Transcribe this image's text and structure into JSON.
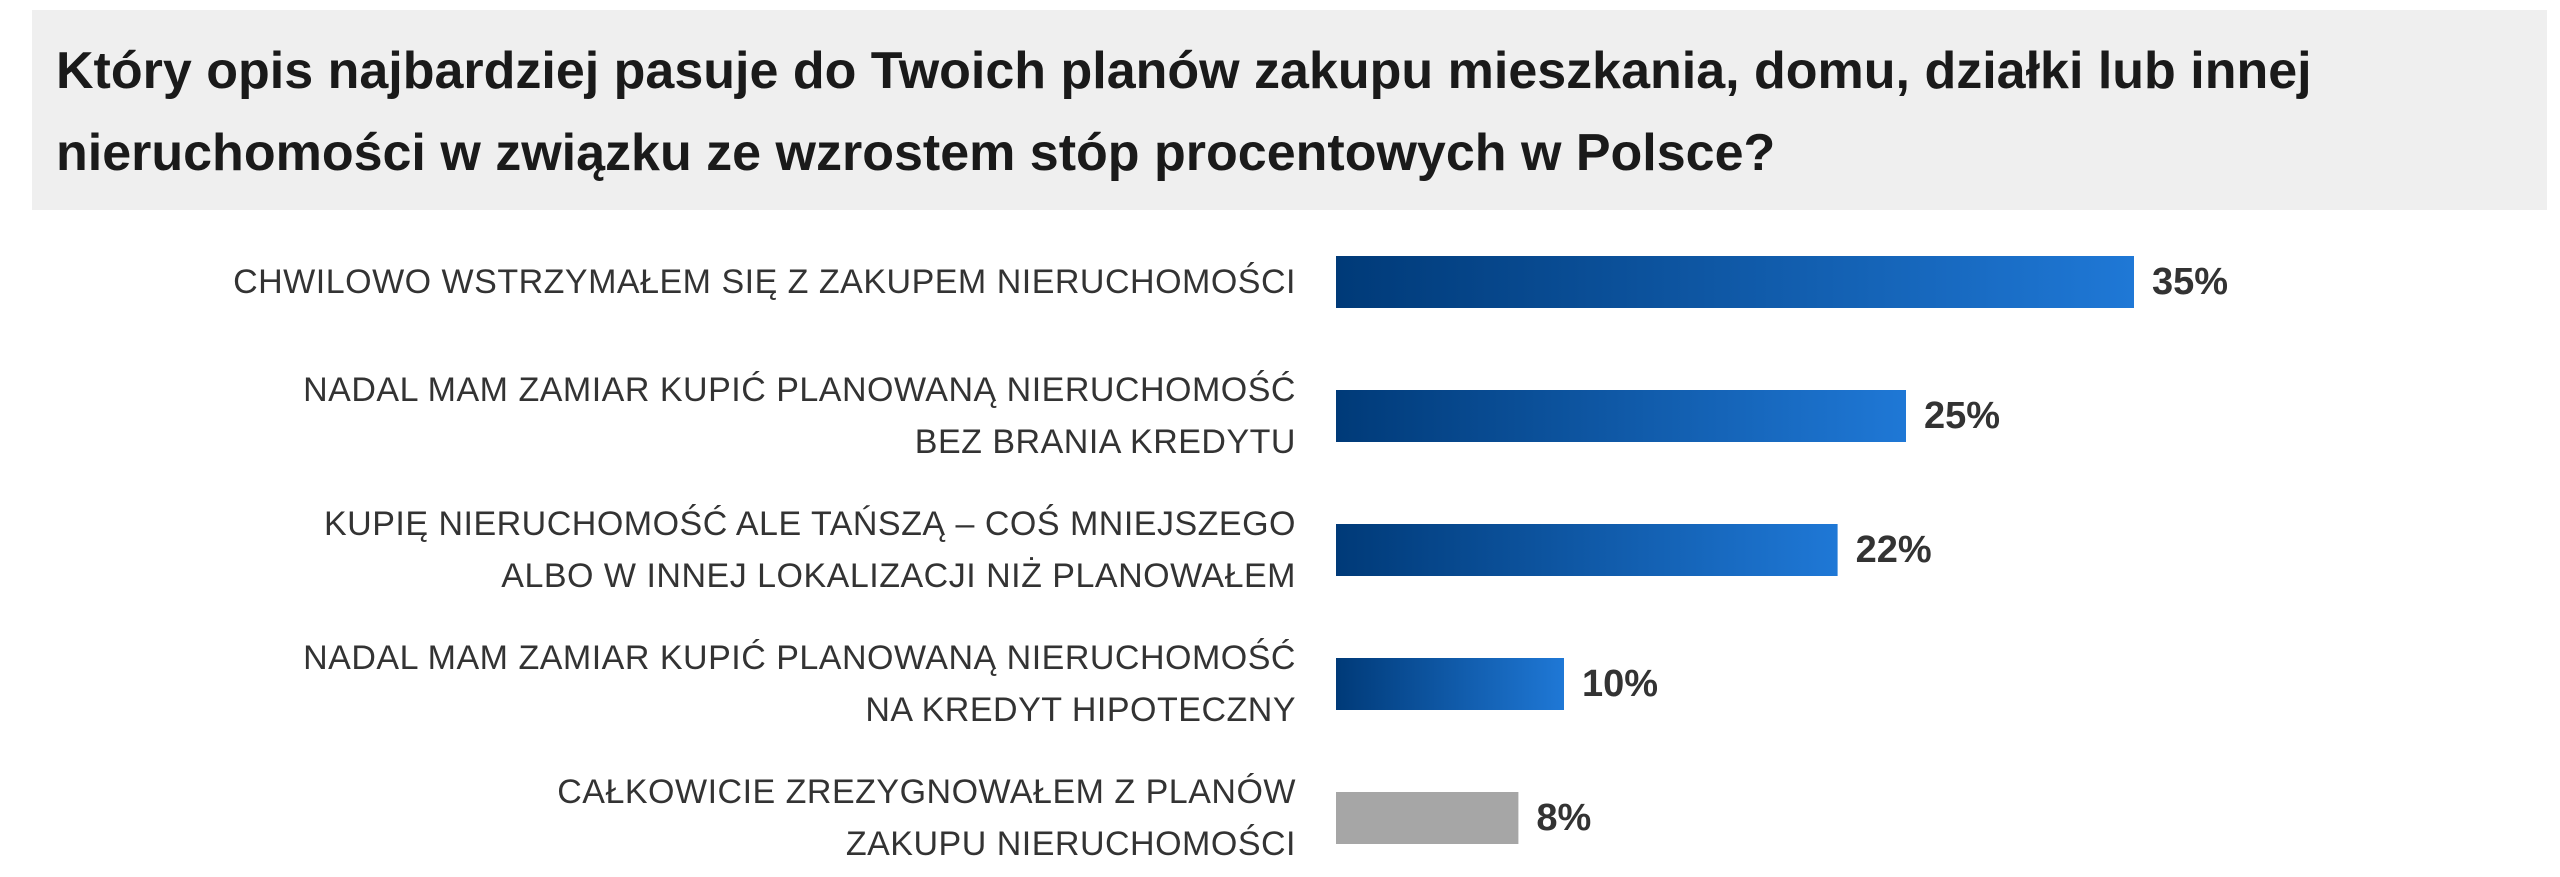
{
  "title_lines": [
    "Który opis najbardziej pasuje do Twoich planów zakupu mieszkania, domu, działki lub innej",
    "nieruchomości w związku ze wzrostem stóp procentowych w Polsce?"
  ],
  "chart_data": {
    "type": "bar",
    "orientation": "horizontal",
    "title": "Który opis najbardziej pasuje do Twoich planów zakupu mieszkania, domu, działki lub innej nieruchomości w związku ze wzrostem stóp procentowych w Polsce?",
    "xlabel": "",
    "ylabel": "",
    "xlim": [
      0,
      35
    ],
    "grid": false,
    "legend": "none",
    "unit": "%",
    "categories": [
      [
        "CHWILOWO WSTRZYMAŁEM SIĘ Z ZAKUPEM NIERUCHOMOŚCI"
      ],
      [
        "NADAL MAM ZAMIAR KUPIĆ PLANOWANĄ NIERUCHOMOŚĆ",
        "BEZ BRANIA KREDYTU"
      ],
      [
        "KUPIĘ NIERUCHOMOŚĆ ALE TAŃSZĄ – COŚ MNIEJSZEGO",
        "ALBO W INNEJ LOKALIZACJI NIŻ PLANOWAŁEM"
      ],
      [
        "NADAL MAM ZAMIAR KUPIĆ PLANOWANĄ NIERUCHOMOŚĆ",
        "NA KREDYT HIPOTECZNY"
      ],
      [
        "CAŁKOWICIE ZREZYGNOWAŁEM Z PLANÓW",
        "ZAKUPU NIERUCHOMOŚCI"
      ]
    ],
    "values": [
      35,
      25,
      22,
      10,
      8
    ],
    "value_labels": [
      "35%",
      "25%",
      "22%",
      "10%",
      "8%"
    ],
    "bar_colors": [
      "blue-gradient",
      "blue-gradient",
      "blue-gradient",
      "blue-gradient",
      "gray"
    ]
  },
  "colors": {
    "bar_dark": "#003a78",
    "bar_light": "#1f78d6",
    "bar_gray": "#a6a6a6",
    "text": "#333333",
    "title_band": "#efefef"
  }
}
